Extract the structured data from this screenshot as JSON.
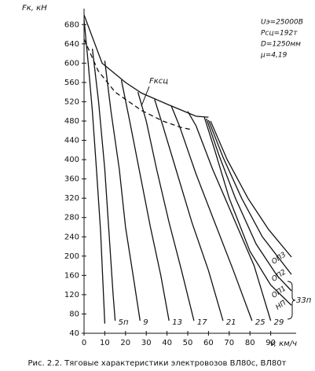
{
  "chart_data": {
    "type": "line",
    "y_label": "Fк, кН",
    "x_label": "v, км/ч",
    "caption": "Рис. 2.2. Тяговые характеристики электровозов ВЛ80с, ВЛ80т",
    "annotations": [
      "Uэ=25000В",
      "Рсц=192т",
      "D=1250мм",
      "μ=4,19",
      "Fксц",
      "33п"
    ],
    "xlim": [
      0,
      100
    ],
    "xticks": [
      0,
      10,
      20,
      30,
      40,
      50,
      60,
      70,
      80,
      90
    ],
    "ylim": [
      40,
      700
    ],
    "yticks": [
      40,
      80,
      120,
      160,
      200,
      240,
      280,
      320,
      360,
      400,
      440,
      480,
      520,
      560,
      600,
      640,
      680
    ],
    "grid": false,
    "series": [
      {
        "color": "#111",
        "dash": false,
        "x": [
          0,
          8.7,
          20,
          27.7,
          40,
          54,
          60
        ],
        "values": [
          700,
          600,
          560,
          538,
          515,
          490,
          488
        ]
      },
      {
        "color": "#111",
        "dash": true,
        "x": [
          0,
          6.8,
          15,
          27.7,
          38,
          46.6,
          52
        ],
        "values": [
          650,
          584,
          540,
          502,
          480,
          467,
          462
        ]
      },
      {
        "color": "#111",
        "dash": false,
        "x": [
          0,
          2,
          4,
          6,
          8,
          10
        ],
        "values": [
          690,
          600,
          500,
          380,
          250,
          60
        ]
      },
      {
        "name": "5п",
        "color": "#111",
        "dash": false,
        "x": [
          4,
          7,
          10,
          12,
          14,
          15
        ],
        "values": [
          630,
          520,
          380,
          250,
          120,
          66
        ]
      },
      {
        "name": "9",
        "color": "#111",
        "dash": false,
        "x": [
          10,
          13,
          17,
          20,
          24,
          27
        ],
        "values": [
          605,
          500,
          380,
          260,
          150,
          66
        ]
      },
      {
        "name": "13",
        "color": "#111",
        "dash": false,
        "x": [
          18,
          22,
          27,
          32,
          37,
          41
        ],
        "values": [
          565,
          480,
          370,
          260,
          160,
          66
        ]
      },
      {
        "name": "17",
        "color": "#111",
        "dash": false,
        "x": [
          26,
          30,
          35,
          41,
          47,
          53
        ],
        "values": [
          540,
          480,
          380,
          270,
          170,
          66
        ]
      },
      {
        "name": "21",
        "color": "#111",
        "dash": false,
        "x": [
          34,
          38,
          45,
          52,
          60,
          67
        ],
        "values": [
          525,
          470,
          370,
          270,
          170,
          66
        ]
      },
      {
        "name": "25",
        "color": "#111",
        "dash": false,
        "x": [
          42,
          46,
          54,
          63,
          72,
          81
        ],
        "values": [
          512,
          470,
          370,
          270,
          170,
          66
        ]
      },
      {
        "name": "29",
        "color": "#111",
        "dash": false,
        "x": [
          50,
          54,
          62,
          72,
          82,
          90
        ],
        "values": [
          500,
          470,
          380,
          280,
          180,
          66
        ]
      },
      {
        "name": "НП",
        "color": "#111",
        "dash": false,
        "x": [
          58,
          63,
          70,
          80,
          90,
          100
        ],
        "values": [
          488,
          420,
          320,
          210,
          140,
          98
        ]
      },
      {
        "name": "ОП1",
        "color": "#111",
        "dash": false,
        "x": [
          59,
          65,
          73,
          83,
          93,
          100
        ],
        "values": [
          485,
          410,
          320,
          225,
          160,
          128
        ]
      },
      {
        "name": "ОП2",
        "color": "#111",
        "dash": false,
        "x": [
          60,
          67,
          76,
          86,
          100
        ],
        "values": [
          482,
          405,
          320,
          240,
          162
        ]
      },
      {
        "name": "ОП3",
        "color": "#111",
        "dash": false,
        "x": [
          61,
          69,
          79,
          89,
          100
        ],
        "values": [
          480,
          400,
          320,
          255,
          198
        ]
      }
    ]
  }
}
